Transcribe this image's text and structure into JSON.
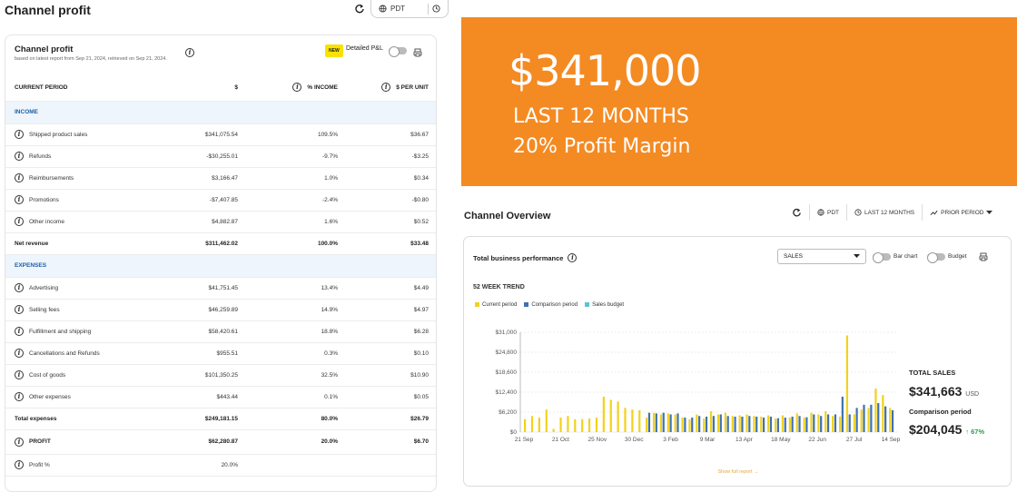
{
  "left": {
    "page_title": "Channel profit",
    "timezone": "PDT",
    "card_title": "Channel profit",
    "card_subtitle": "based on latest report from Sep 21, 2024, retrieved on Sep 21, 2024.",
    "new_badge": "NEW",
    "detailed_label": "Detailed P&L",
    "columns": [
      "CURRENT PERIOD",
      "$",
      "% INCOME",
      "$ PER UNIT"
    ],
    "income_section": "INCOME",
    "income_rows": [
      {
        "label": "Shipped product sales",
        "usd": "$341,075.54",
        "pct": "109.5%",
        "per_unit": "$36.67"
      },
      {
        "label": "Refunds",
        "usd": "-$30,255.01",
        "pct": "-9.7%",
        "per_unit": "-$3.25"
      },
      {
        "label": "Reimbursements",
        "usd": "$3,166.47",
        "pct": "1.0%",
        "per_unit": "$0.34"
      },
      {
        "label": "Promotions",
        "usd": "-$7,407.85",
        "pct": "-2.4%",
        "per_unit": "-$0.80"
      },
      {
        "label": "Other income",
        "usd": "$4,882.87",
        "pct": "1.6%",
        "per_unit": "$0.52"
      }
    ],
    "net_revenue": {
      "label": "Net revenue",
      "usd": "$311,462.02",
      "pct": "100.0%",
      "per_unit": "$33.48"
    },
    "expenses_section": "EXPENSES",
    "expense_rows": [
      {
        "label": "Advertising",
        "usd": "$41,751.45",
        "pct": "13.4%",
        "per_unit": "$4.49"
      },
      {
        "label": "Selling fees",
        "usd": "$46,259.89",
        "pct": "14.9%",
        "per_unit": "$4.97"
      },
      {
        "label": "Fulfillment and shipping",
        "usd": "$58,420.61",
        "pct": "18.8%",
        "per_unit": "$6.28"
      },
      {
        "label": "Cancellations and Refunds",
        "usd": "$955.51",
        "pct": "0.3%",
        "per_unit": "$0.10"
      },
      {
        "label": "Cost of goods",
        "usd": "$101,350.25",
        "pct": "32.5%",
        "per_unit": "$10.90"
      },
      {
        "label": "Other expenses",
        "usd": "$443.44",
        "pct": "0.1%",
        "per_unit": "$0.05"
      }
    ],
    "total_expenses": {
      "label": "Total expenses",
      "usd": "$249,181.15",
      "pct": "80.0%",
      "per_unit": "$26.79"
    },
    "profit": {
      "label": "PROFIT",
      "usd": "$62,280.87",
      "pct": "20.0%",
      "per_unit": "$6.70"
    },
    "profit_pct": {
      "label": "Profit %",
      "usd": "20.0%"
    }
  },
  "stat": {
    "amount": "$341,000",
    "line1": "LAST 12 MONTHS",
    "line2": "20% Profit Margin",
    "bg_color": "#f48a22"
  },
  "overview": {
    "title": "Channel Overview",
    "timezone": "PDT",
    "period": "LAST 12 MONTHS",
    "compare": "PRIOR PERIOD",
    "card_title": "Total business performance",
    "metric_select": "SALES",
    "bar_chart_label": "Bar chart",
    "budget_label": "Budget",
    "trend_label": "52 WEEK TREND",
    "total_sales_label": "TOTAL SALES",
    "total_sales_value": "$341,663",
    "total_sales_unit": "USD",
    "comparison_label": "Comparison period",
    "comparison_value": "$204,045",
    "comparison_change": "↑ 67%",
    "show_full": "Show full report →"
  },
  "chart_data": {
    "type": "bar",
    "title": "52 WEEK TREND",
    "y_ticks": [
      "$0",
      "$6,200",
      "$12,400",
      "$18,600",
      "$24,800",
      "$31,000"
    ],
    "ylim": [
      0,
      31000
    ],
    "x_tick_labels": [
      "21 Sep",
      "21 Oct",
      "25 Nov",
      "30 Dec",
      "3 Feb",
      "9 Mar",
      "13 Apr",
      "18 May",
      "22 Jun",
      "27 Jul",
      "14 Sep"
    ],
    "legend": [
      "Current period",
      "Comparison period",
      "Sales budget"
    ],
    "colors": {
      "current": "#f2d21b",
      "comparison": "#3f72b0",
      "budget": "#5ec0d6"
    },
    "series": [
      {
        "name": "Current period",
        "values": [
          4000,
          5000,
          4500,
          7000,
          1000,
          4500,
          5000,
          4000,
          4000,
          4200,
          4500,
          11000,
          10000,
          9500,
          7500,
          7000,
          6800,
          4500,
          6000,
          5500,
          5800,
          5500,
          4500,
          4000,
          5500,
          4200,
          6500,
          5500,
          6000,
          5000,
          5200,
          5500,
          5000,
          4800,
          5200,
          4200,
          5200,
          4500,
          5800,
          4500,
          6000,
          5500,
          6500,
          5000,
          4800,
          30000,
          5500,
          7000,
          7500,
          13500,
          11500,
          7500
        ]
      },
      {
        "name": "Comparison period",
        "values": [
          0,
          0,
          0,
          0,
          0,
          0,
          0,
          0,
          0,
          0,
          0,
          0,
          0,
          0,
          0,
          0,
          0,
          6000,
          5800,
          6000,
          5500,
          5800,
          4500,
          4500,
          5000,
          4800,
          5000,
          5500,
          5000,
          4800,
          4800,
          5000,
          4800,
          4500,
          4800,
          4300,
          4500,
          4800,
          5000,
          4600,
          5500,
          5000,
          5500,
          5500,
          11000,
          5500,
          7500,
          8500,
          8500,
          9000,
          8000,
          6800
        ]
      }
    ]
  }
}
